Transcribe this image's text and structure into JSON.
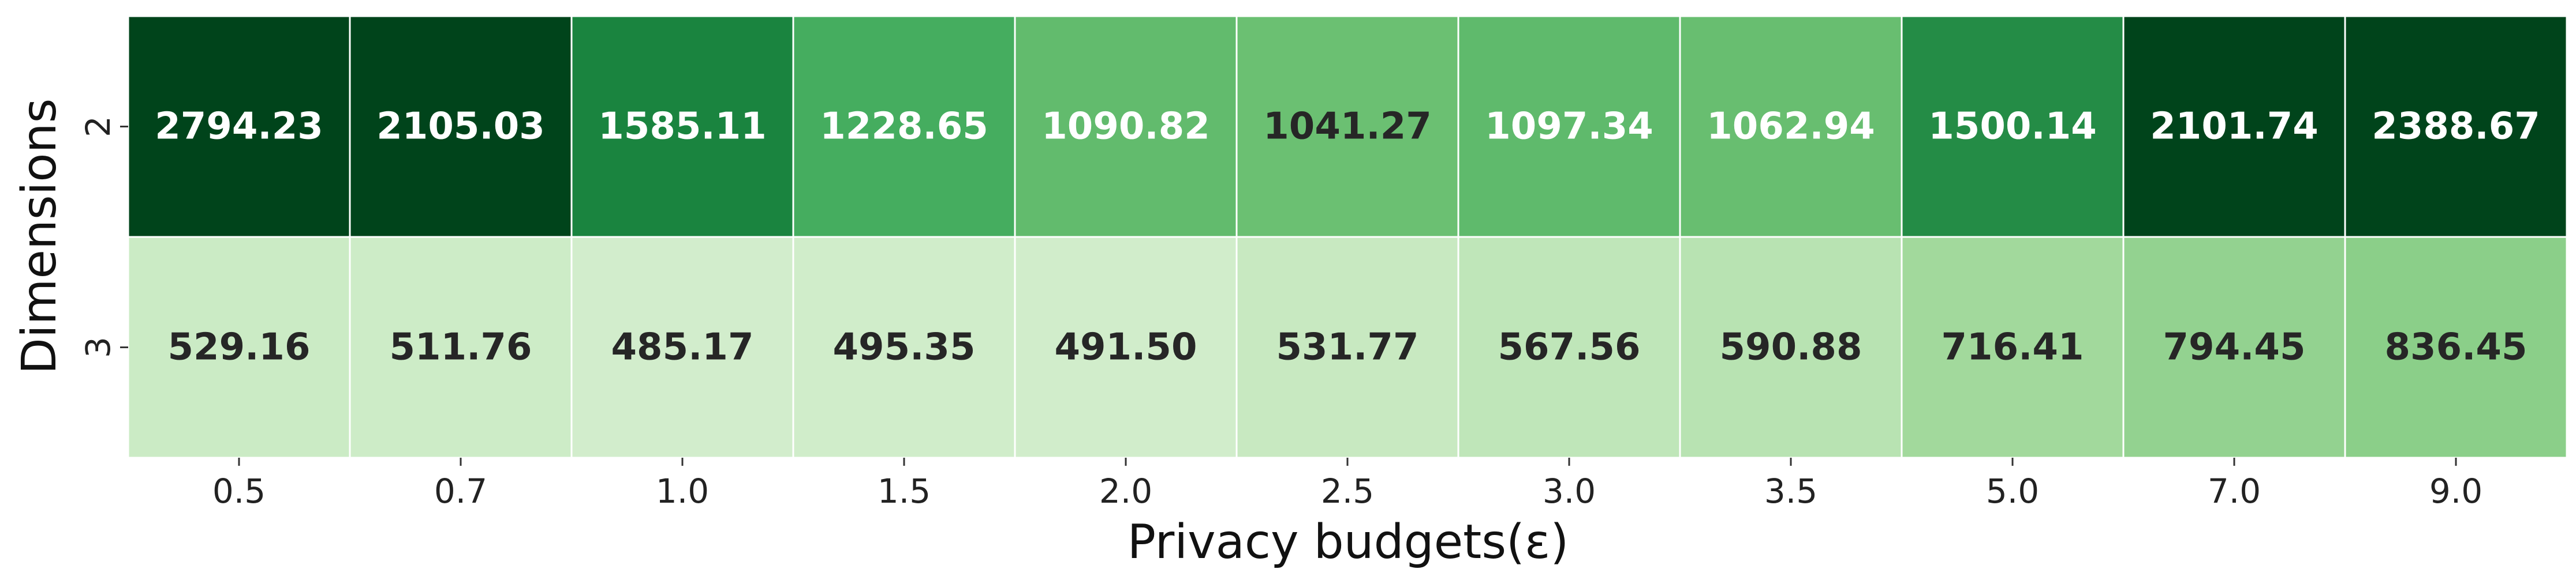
{
  "chart_data": {
    "type": "heatmap",
    "colormap": "Greens",
    "x_categories": [
      "0.5",
      "0.7",
      "1.0",
      "1.5",
      "2.0",
      "2.5",
      "3.0",
      "3.5",
      "5.0",
      "7.0",
      "9.0"
    ],
    "y_categories": [
      "2",
      "3"
    ],
    "values": [
      [
        "2794.23",
        "2105.03",
        "1585.11",
        "1228.65",
        "1090.82",
        "1041.27",
        "1097.34",
        "1062.94",
        "1500.14",
        "2101.74",
        "2388.67"
      ],
      [
        "529.16",
        "511.76",
        "485.17",
        "495.35",
        "491.50",
        "531.77",
        "567.56",
        "590.88",
        "716.41",
        "794.45",
        "836.45"
      ]
    ],
    "xlabel": "Privacy budgets(ε)",
    "ylabel": "Dimensions",
    "color_range": [
      400,
      2100
    ],
    "cell_colors": [
      [
        "#00441b",
        "#00441b",
        "#1a843f",
        "#45ad5f",
        "#62bb6d",
        "#6bc072",
        "#5fba6c",
        "#68be70",
        "#248c46",
        "#00441b",
        "#00441b"
      ],
      [
        "#cbebc5",
        "#cdecc7",
        "#d2edcc",
        "#d0edca",
        "#d1edcb",
        "#c8e9c1",
        "#bfe6b9",
        "#b8e3b2",
        "#a2d99c",
        "#93d290",
        "#8bcf89"
      ]
    ],
    "label_colors": [
      [
        "#ffffff",
        "#ffffff",
        "#ffffff",
        "#ffffff",
        "#ffffff",
        "#262626",
        "#ffffff",
        "#ffffff",
        "#ffffff",
        "#ffffff",
        "#ffffff"
      ],
      [
        "#262626",
        "#262626",
        "#262626",
        "#262626",
        "#262626",
        "#262626",
        "#262626",
        "#262626",
        "#262626",
        "#262626",
        "#262626"
      ]
    ],
    "colorbar": false,
    "grid_line_color": "#ffffff"
  }
}
